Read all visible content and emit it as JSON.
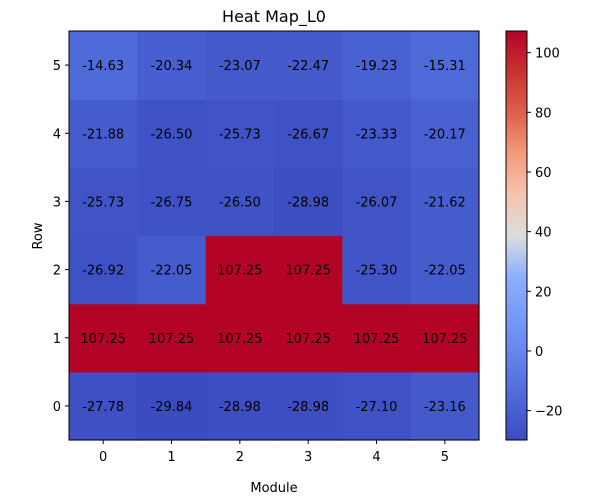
{
  "chart_data": {
    "type": "heatmap",
    "title": "Heat Map_L0",
    "xlabel": "Module",
    "ylabel": "Row",
    "x_ticks": [
      "0",
      "1",
      "2",
      "3",
      "4",
      "5"
    ],
    "y_ticks": [
      "0",
      "1",
      "2",
      "3",
      "4",
      "5"
    ],
    "values": [
      [
        -27.78,
        -29.84,
        -28.98,
        -28.98,
        -27.1,
        -23.16
      ],
      [
        107.25,
        107.25,
        107.25,
        107.25,
        107.25,
        107.25
      ],
      [
        -26.92,
        -22.05,
        107.25,
        107.25,
        -25.3,
        -22.05
      ],
      [
        -25.73,
        -26.75,
        -26.5,
        -28.98,
        -26.07,
        -21.62
      ],
      [
        -21.88,
        -26.5,
        -25.73,
        -26.67,
        -23.33,
        -20.17
      ],
      [
        -14.63,
        -20.34,
        -23.07,
        -22.47,
        -19.23,
        -15.31
      ]
    ],
    "value_format": "2 decimals",
    "colormap": "coolwarm",
    "colorbar": {
      "min": -29.84,
      "max": 107.25,
      "ticks": [
        -20,
        0,
        20,
        40,
        60,
        80,
        100
      ],
      "tick_labels": [
        "−20",
        "0",
        "20",
        "40",
        "60",
        "80",
        "100"
      ]
    },
    "grid": false
  }
}
